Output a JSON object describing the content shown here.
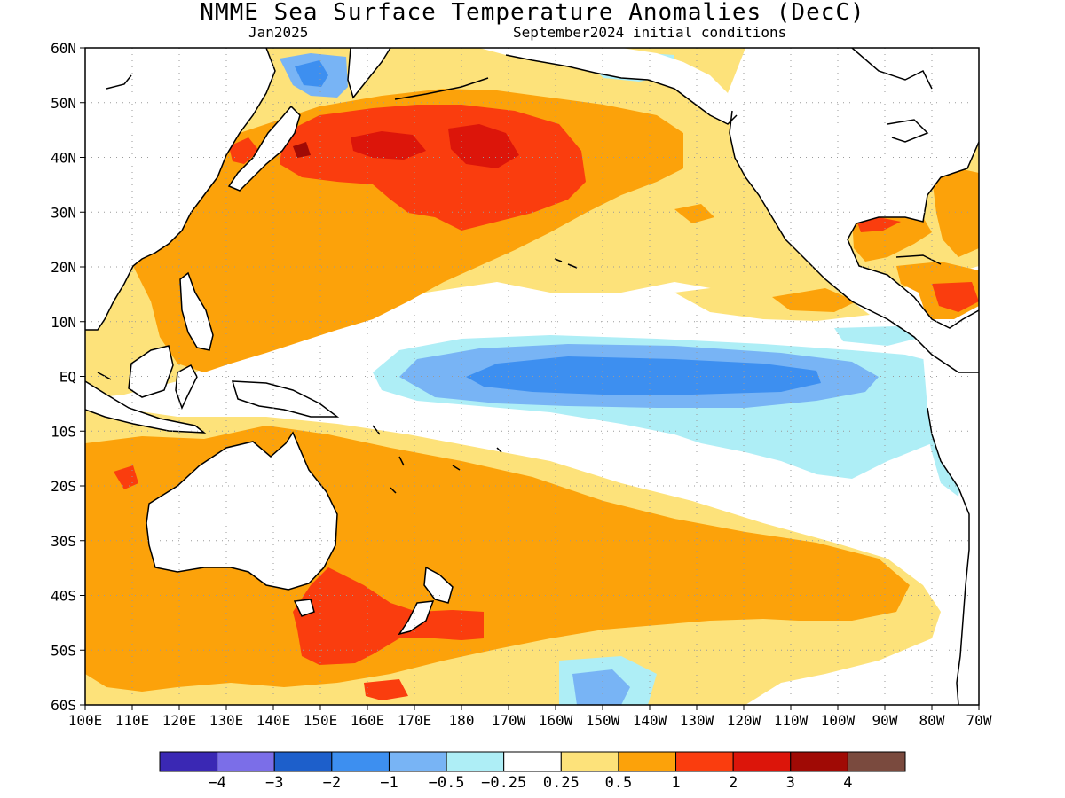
{
  "title": "NMME Sea Surface Temperature Anomalies (DecC)",
  "subtitle_left": "Jan2025",
  "subtitle_right": "September2024 initial conditions",
  "lat_labels": [
    "60N",
    "50N",
    "40N",
    "30N",
    "20N",
    "10N",
    "EQ",
    "10S",
    "20S",
    "30S",
    "40S",
    "50S",
    "60S"
  ],
  "lon_labels": [
    "100E",
    "110E",
    "120E",
    "130E",
    "140E",
    "150E",
    "160E",
    "170E",
    "180",
    "170W",
    "160W",
    "150W",
    "140W",
    "130W",
    "120W",
    "110W",
    "100W",
    "90W",
    "80W",
    "70W"
  ],
  "colorbar": {
    "colors": [
      "#3a28b4",
      "#7b6ee8",
      "#1d5fcb",
      "#3d8ff0",
      "#78b4f5",
      "#aeeef6",
      "#ffffff",
      "#fde27a",
      "#fca20a",
      "#fa3d0e",
      "#dc150a",
      "#a00a05",
      "#7a4a3e"
    ],
    "labels": [
      "−4",
      "−3",
      "−2",
      "−1",
      "−0.5",
      "−0.25",
      "0.25",
      "0.5",
      "1",
      "2",
      "3",
      "4"
    ]
  },
  "colors": {
    "land": "#ffffff",
    "coast": "#000000",
    "grid": "#9a9a9a",
    "neutral": "#ffffff",
    "weak_warm": "#fde27a",
    "warm": "#fca20a",
    "very_warm": "#fa3d0e",
    "hot": "#dc150a",
    "extreme": "#a00a05",
    "weak_cool": "#aeeef6",
    "cool": "#78b4f5",
    "cooler": "#3d8ff0"
  }
}
